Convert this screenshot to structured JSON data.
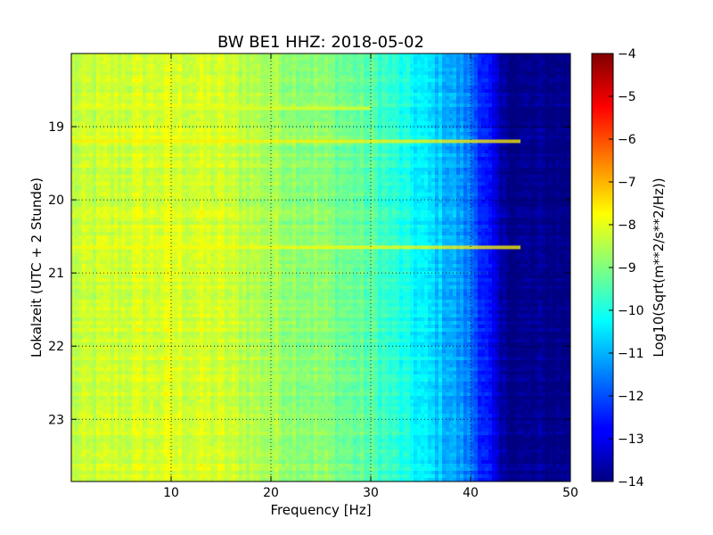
{
  "chart_data": {
    "type": "heatmap",
    "title": "BW BE1 HHZ: 2018-05-02",
    "xlabel": "Frequency [Hz]",
    "ylabel": "Lokalzeit (UTC + 2 Stunde)",
    "colorbar_label": "Log10(Sqrt(m**2/s**2/Hz))",
    "xlim": [
      0,
      50
    ],
    "ylim": [
      23.85,
      18.0
    ],
    "x_ticks": [
      "10",
      "20",
      "30",
      "40",
      "50"
    ],
    "y_ticks": [
      "19",
      "20",
      "21",
      "22",
      "23"
    ],
    "y_tick_values": [
      19,
      20,
      21,
      22,
      23
    ],
    "x_tick_values": [
      10,
      20,
      30,
      40,
      50
    ],
    "color_range": [
      -14,
      -4
    ],
    "colorbar_ticks": [
      "−4",
      "−5",
      "−6",
      "−7",
      "−8",
      "−9",
      "−10",
      "−11",
      "−12",
      "−13",
      "−14"
    ],
    "colorbar_tick_values": [
      -4,
      -5,
      -6,
      -7,
      -8,
      -9,
      -10,
      -11,
      -12,
      -13,
      -14
    ],
    "grid": true,
    "colormap": "jet",
    "frequency_profile": [
      {
        "freq": 0,
        "value": -8.4
      },
      {
        "freq": 5,
        "value": -8.2
      },
      {
        "freq": 10,
        "value": -8.1
      },
      {
        "freq": 15,
        "value": -8.2
      },
      {
        "freq": 20,
        "value": -8.6
      },
      {
        "freq": 25,
        "value": -8.9
      },
      {
        "freq": 30,
        "value": -9.4
      },
      {
        "freq": 33,
        "value": -10.0
      },
      {
        "freq": 36,
        "value": -10.6
      },
      {
        "freq": 38,
        "value": -11.0
      },
      {
        "freq": 40,
        "value": -11.6
      },
      {
        "freq": 42,
        "value": -12.8
      },
      {
        "freq": 43,
        "value": -13.7
      },
      {
        "freq": 45,
        "value": -13.9
      },
      {
        "freq": 50,
        "value": -13.9
      }
    ],
    "horizontal_bands": [
      {
        "time": 19.2,
        "max_freq": 45,
        "value": -7.6
      },
      {
        "time": 20.65,
        "max_freq": 45,
        "value": -7.7
      },
      {
        "time": 18.75,
        "max_freq": 30,
        "value": -8.0
      }
    ]
  }
}
